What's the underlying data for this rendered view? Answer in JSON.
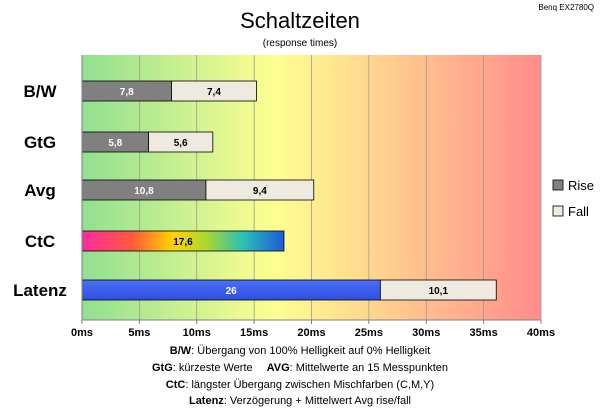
{
  "brand": "Benq EX2780Q",
  "chart_data": {
    "type": "bar",
    "orientation": "horizontal",
    "stacked": true,
    "title": "Schaltzeiten",
    "subtitle": "(response times)",
    "categories": [
      "B/W",
      "GtG",
      "Avg",
      "CtC",
      "Latenz"
    ],
    "series": [
      {
        "name": "Rise",
        "color": "#808080",
        "values": [
          7.8,
          5.8,
          10.8,
          17.6,
          26
        ]
      },
      {
        "name": "Fall",
        "color": "#efeae0",
        "values": [
          7.4,
          5.6,
          9.4,
          null,
          10.1
        ]
      }
    ],
    "special_colors": {
      "CtC": "rainbow",
      "Latenz": "#3a5ff0"
    },
    "xlim": [
      0,
      40
    ],
    "xticks": [
      "0ms",
      "5ms",
      "10ms",
      "15ms",
      "20ms",
      "25ms",
      "30ms",
      "35ms",
      "40ms"
    ],
    "grid": true,
    "legend_position": "right",
    "background_gradient": [
      "#90e090",
      "#ffff90",
      "#ff9090"
    ]
  },
  "footnotes": [
    [
      {
        "b": "B/W",
        "t": ":  Übergang von 100% Helligkeit auf 0% Helligkeit"
      }
    ],
    [
      {
        "b": "GtG",
        "t": ": kürzeste  Werte"
      },
      {
        "b": "AVG",
        "t": ": Mittelwerte  an 15 Messpunkten"
      }
    ],
    [
      {
        "b": "CtC",
        "t": ": längster Übergang  zwischen Mischfarben  (C,M,Y)"
      }
    ],
    [
      {
        "b": "Latenz",
        "t": ": Verzögerung  + Mittelwert  Avg rise/fall"
      }
    ]
  ]
}
